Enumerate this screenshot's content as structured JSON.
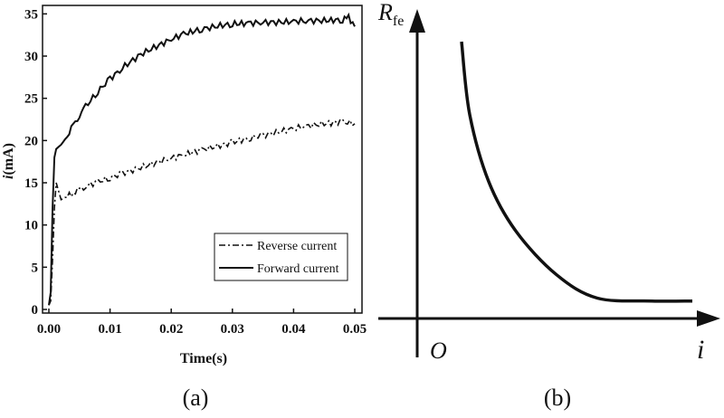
{
  "chart_data": [
    {
      "panel_label": "(a)",
      "type": "line",
      "xlabel": "Time(s)",
      "ylabel_italic": "i",
      "ylabel_rest": "(mA)",
      "xlim": [
        0.0,
        0.05
      ],
      "ylim": [
        0,
        36
      ],
      "xticks": [
        "0.00",
        "0.01",
        "0.02",
        "0.03",
        "0.04",
        "0.05"
      ],
      "yticks": [
        "0",
        "5",
        "10",
        "15",
        "20",
        "25",
        "30",
        "35"
      ],
      "legend_position": "bottom-right",
      "series": [
        {
          "name": "Reverse current",
          "style": "dash-dot",
          "x": [
            0.0,
            0.0003,
            0.0006,
            0.0009,
            0.0012,
            0.0016,
            0.002,
            0.003,
            0.004,
            0.005,
            0.006,
            0.008,
            0.01,
            0.012,
            0.015,
            0.018,
            0.02,
            0.022,
            0.025,
            0.028,
            0.03,
            0.033,
            0.035,
            0.038,
            0.04,
            0.042,
            0.045,
            0.048,
            0.05
          ],
          "y": [
            0.5,
            1.0,
            6.0,
            12.0,
            15.0,
            14.0,
            13.0,
            13.4,
            13.8,
            14.2,
            14.6,
            15.1,
            15.6,
            16.1,
            16.8,
            17.5,
            17.9,
            18.3,
            18.9,
            19.4,
            19.8,
            20.3,
            20.6,
            21.1,
            21.4,
            21.7,
            22.0,
            22.2,
            22.0
          ]
        },
        {
          "name": "Forward current",
          "style": "solid",
          "x": [
            0.0,
            0.0003,
            0.0006,
            0.0009,
            0.0012,
            0.002,
            0.003,
            0.004,
            0.005,
            0.006,
            0.008,
            0.01,
            0.012,
            0.015,
            0.018,
            0.02,
            0.022,
            0.025,
            0.028,
            0.03,
            0.033,
            0.035,
            0.038,
            0.04,
            0.042,
            0.045,
            0.048,
            0.049,
            0.05
          ],
          "y": [
            0.5,
            2.0,
            12.0,
            18.0,
            19.0,
            19.5,
            20.5,
            21.8,
            23.0,
            24.0,
            25.8,
            27.3,
            28.6,
            30.2,
            31.3,
            32.0,
            32.6,
            33.2,
            33.6,
            33.8,
            33.9,
            34.0,
            34.0,
            34.1,
            34.2,
            34.2,
            34.3,
            34.6,
            33.5
          ]
        }
      ]
    },
    {
      "panel_label": "(b)",
      "type": "line",
      "ylabel_main": "R",
      "ylabel_sub": "fe",
      "xlabel": "i",
      "origin_label": "O",
      "series": [
        {
          "description_points": [
            [
              0.15,
              0.95
            ],
            [
              0.18,
              0.7
            ],
            [
              0.25,
              0.47
            ],
            [
              0.35,
              0.3
            ],
            [
              0.5,
              0.15
            ],
            [
              0.65,
              0.07
            ],
            [
              0.85,
              0.06
            ],
            [
              1.0,
              0.06
            ]
          ]
        }
      ]
    }
  ]
}
